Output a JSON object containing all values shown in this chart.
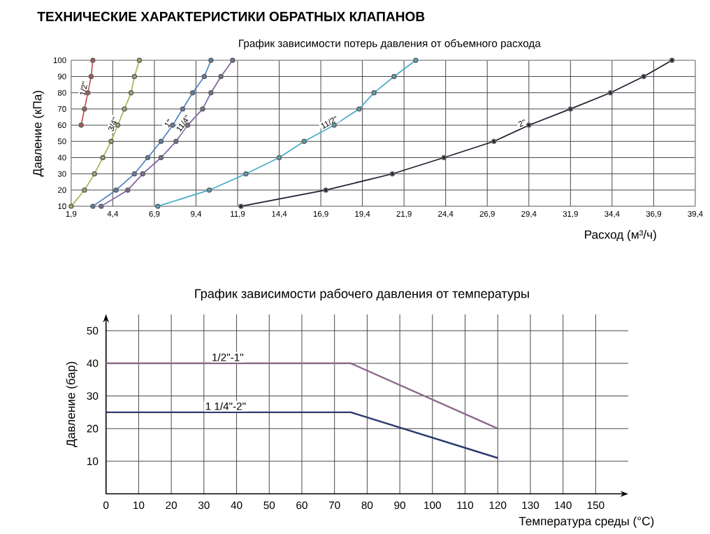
{
  "chart_data": [
    {
      "type": "line",
      "title": "ТЕХНИЧЕСКИЕ ХАРАКТЕРИСТИКИ ОБРАТНЫХ КЛАПАНОВ",
      "subtitle": "График зависимости потерь давления от объемного расхода",
      "xlabel": "Расход (м³/ч)",
      "ylabel": "Давление (кПа)",
      "xlim": [
        1.9,
        39.4
      ],
      "xticks": [
        {
          "value": 1.9,
          "label": "1,9"
        },
        {
          "value": 4.4,
          "label": "4,4"
        },
        {
          "value": 6.9,
          "label": "6,9"
        },
        {
          "value": 9.4,
          "label": "9,4"
        },
        {
          "value": 11.9,
          "label": "11,9"
        },
        {
          "value": 14.4,
          "label": "14,4"
        },
        {
          "value": 16.9,
          "label": "16,9"
        },
        {
          "value": 19.4,
          "label": "19,4"
        },
        {
          "value": 21.9,
          "label": "21,9"
        },
        {
          "value": 24.4,
          "label": "24,4"
        },
        {
          "value": 26.9,
          "label": "26,9"
        },
        {
          "value": 29.4,
          "label": "29,4"
        },
        {
          "value": 31.9,
          "label": "31,9"
        },
        {
          "value": 34.4,
          "label": "34,4"
        },
        {
          "value": 36.9,
          "label": "36,9"
        },
        {
          "value": 39.4,
          "label": "39,4"
        }
      ],
      "ylim": [
        10,
        100
      ],
      "yticks": [
        10,
        20,
        30,
        40,
        50,
        60,
        70,
        80,
        90,
        100
      ],
      "grid": true,
      "marker": "circle",
      "series": [
        {
          "name": "1/2''",
          "color": "#c0504d",
          "x": [
            2.5,
            2.7,
            2.9,
            3.1,
            3.2
          ],
          "values": [
            60,
            70,
            80,
            90,
            100
          ]
        },
        {
          "name": "3/4''",
          "color": "#9bbb59",
          "x": [
            1.9,
            2.7,
            3.3,
            3.8,
            4.3,
            4.7,
            5.1,
            5.5,
            5.7,
            6.0
          ],
          "values": [
            10,
            20,
            30,
            40,
            50,
            60,
            70,
            80,
            90,
            100
          ]
        },
        {
          "name": "1''",
          "color": "#4f81bd",
          "x": [
            3.2,
            4.6,
            5.7,
            6.5,
            7.3,
            8.0,
            8.6,
            9.2,
            9.9,
            10.3
          ],
          "values": [
            10,
            20,
            30,
            40,
            50,
            60,
            70,
            80,
            90,
            100
          ]
        },
        {
          "name": "11/4''",
          "color": "#8064a2",
          "x": [
            3.7,
            5.3,
            6.2,
            7.3,
            8.2,
            8.9,
            9.8,
            10.3,
            10.9,
            11.6
          ],
          "values": [
            10,
            20,
            30,
            40,
            50,
            60,
            70,
            80,
            90,
            100
          ]
        },
        {
          "name": "11/2''",
          "color": "#4bacc6",
          "x": [
            7.1,
            10.2,
            12.4,
            14.4,
            15.9,
            17.7,
            19.2,
            20.1,
            21.3,
            22.6
          ],
          "values": [
            10,
            20,
            30,
            40,
            50,
            60,
            70,
            80,
            90,
            100
          ]
        },
        {
          "name": "2''",
          "color": "#1f2030",
          "x": [
            12.1,
            17.2,
            21.2,
            24.3,
            27.3,
            29.4,
            31.9,
            34.3,
            36.3,
            38.0
          ],
          "values": [
            10,
            20,
            30,
            40,
            50,
            60,
            70,
            80,
            90,
            100
          ]
        }
      ]
    },
    {
      "type": "line",
      "title": "График зависимости рабочего давления от температуры",
      "xlabel": "Температура среды  (°C)",
      "ylabel": "Давление (бар)",
      "xlim": [
        0,
        160
      ],
      "ylim": [
        0,
        55
      ],
      "xticks": [
        0,
        10,
        20,
        30,
        40,
        50,
        60,
        70,
        80,
        90,
        100,
        110,
        120,
        130,
        140,
        150
      ],
      "yticks": [
        10,
        20,
        30,
        40,
        50
      ],
      "grid": true,
      "series": [
        {
          "name": "1/2\"-1\"",
          "color": "#8a6a8a",
          "x": [
            0,
            75,
            120
          ],
          "values": [
            40,
            40,
            20
          ]
        },
        {
          "name": "1 1/4\"-2\"",
          "color": "#2c3a6e",
          "x": [
            0,
            75,
            120
          ],
          "values": [
            25,
            25,
            11
          ]
        }
      ]
    }
  ]
}
